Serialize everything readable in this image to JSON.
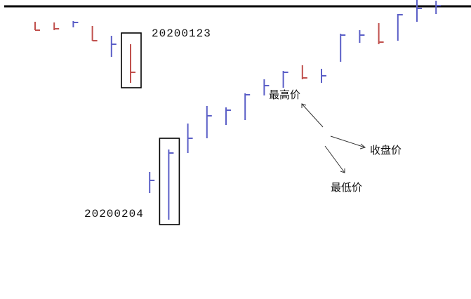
{
  "chart_data": {
    "type": "ohlc",
    "title": "",
    "grid": false,
    "colors": {
      "up": "#5b5fc7",
      "down": "#c0504d",
      "frame": "#000000"
    },
    "bars": [
      {
        "i": 0,
        "color": "down",
        "high": 402,
        "low": 390,
        "close": 390
      },
      {
        "i": 1,
        "color": "down",
        "high": 401,
        "low": 390,
        "close": 392
      },
      {
        "i": 2,
        "color": "up",
        "high": 403,
        "low": 394,
        "close": 401
      },
      {
        "i": 3,
        "color": "down",
        "high": 396,
        "low": 375,
        "close": 375
      },
      {
        "i": 4,
        "color": "up",
        "high": 382,
        "low": 352,
        "close": 370
      },
      {
        "i": 5,
        "color": "down",
        "high": 370,
        "low": 315,
        "close": 330
      },
      {
        "i": 6,
        "color": "up",
        "high": 188,
        "low": 158,
        "close": 176
      },
      {
        "i": 7,
        "color": "up",
        "high": 220,
        "low": 120,
        "close": 215
      },
      {
        "i": 8,
        "color": "up",
        "high": 257,
        "low": 215,
        "close": 236
      },
      {
        "i": 9,
        "color": "up",
        "high": 282,
        "low": 236,
        "close": 268
      },
      {
        "i": 10,
        "color": "up",
        "high": 280,
        "low": 255,
        "close": 276
      },
      {
        "i": 11,
        "color": "up",
        "high": 300,
        "low": 262,
        "close": 298
      },
      {
        "i": 12,
        "color": "up",
        "high": 320,
        "low": 297,
        "close": 311
      },
      {
        "i": 13,
        "color": "up",
        "high": 332,
        "low": 308,
        "close": 330
      },
      {
        "i": 14,
        "color": "down",
        "high": 340,
        "low": 320,
        "close": 322
      },
      {
        "i": 15,
        "color": "up",
        "high": 335,
        "low": 315,
        "close": 325
      },
      {
        "i": 16,
        "color": "up",
        "high": 385,
        "low": 345,
        "close": 383
      },
      {
        "i": 17,
        "color": "up",
        "high": 390,
        "low": 372,
        "close": 383
      },
      {
        "i": 18,
        "color": "down",
        "high": 400,
        "low": 370,
        "close": 373
      },
      {
        "i": 19,
        "color": "up",
        "high": 413,
        "low": 375,
        "close": 412
      },
      {
        "i": 20,
        "color": "up",
        "high": 435,
        "low": 402,
        "close": 421
      },
      {
        "i": 21,
        "color": "up",
        "high": 432,
        "low": 413,
        "close": 425
      }
    ],
    "highlights": [
      {
        "bar": 5,
        "label": "20200123"
      },
      {
        "bar": 7,
        "label": "20200204"
      }
    ],
    "annotations": {
      "high": "最高价",
      "close": "收盘价",
      "low": "最低价"
    }
  }
}
